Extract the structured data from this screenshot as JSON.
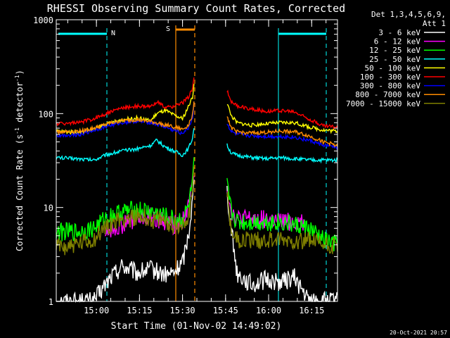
{
  "chart_data": {
    "type": "line",
    "title": "RHESSI Observing Summary Count Rates, Corrected",
    "xlabel": "Start Time (01-Nov-02 14:49:02)",
    "ylabel": "Corrected Count Rate (s",
    "ylabel_sup1": "-1",
    "ylabel_mid": " detector",
    "ylabel_sup2": "-1",
    "ylabel_end": ")",
    "y_scale": "log",
    "ylim": [
      1,
      1000
    ],
    "xlim_minutes": [
      -3,
      95
    ],
    "y_ticks": [
      {
        "value": 1,
        "label": "1"
      },
      {
        "value": 10,
        "label": "10"
      },
      {
        "value": 100,
        "label": "100"
      },
      {
        "value": 1000,
        "label": "1000"
      }
    ],
    "x_ticks": [
      {
        "minute": 11,
        "label": "15:00"
      },
      {
        "minute": 26,
        "label": "15:15"
      },
      {
        "minute": 41,
        "label": "15:30"
      },
      {
        "minute": 56,
        "label": "15:45"
      },
      {
        "minute": 71,
        "label": "16:00"
      },
      {
        "minute": 86,
        "label": "16:15"
      }
    ],
    "legend": {
      "header_line1": "Det 1,3,4,5,6,9,",
      "header_line2": "Att 1",
      "entries": [
        {
          "label": "3 - 6 keV",
          "color": "#ffffff"
        },
        {
          "label": "6 - 12 keV",
          "color": "#ff00ff"
        },
        {
          "label": "12 - 25 keV",
          "color": "#00ff00"
        },
        {
          "label": "25 - 50 keV",
          "color": "#00ffff"
        },
        {
          "label": "50 - 100 keV",
          "color": "#ffff00"
        },
        {
          "label": "100 - 300 keV",
          "color": "#ff0000"
        },
        {
          "label": "300 - 800 keV",
          "color": "#0000ff"
        },
        {
          "label": "800 - 7000 keV",
          "color": "#ff8c00"
        },
        {
          "label": "7000 - 15000 keV",
          "color": "#808000"
        }
      ]
    },
    "series": [
      {
        "name": "3 - 6 keV",
        "color": "#ffffff",
        "x": [
          -3,
          10,
          16,
          20,
          25,
          30,
          35,
          38,
          41,
          43,
          44.5,
          45,
          56.5,
          58,
          60,
          65,
          70,
          75,
          80,
          85,
          91,
          95
        ],
        "y": [
          1,
          1,
          1.8,
          2.4,
          2.0,
          2.2,
          1.9,
          2.0,
          2.6,
          5.0,
          12.0,
          20.0,
          15.0,
          6.0,
          2.0,
          1.5,
          1.7,
          1.6,
          1.8,
          1.0,
          1.0,
          1.0
        ]
      },
      {
        "name": "6 - 12 keV",
        "color": "#ff00ff",
        "x": [
          14,
          20,
          25,
          30,
          35,
          38,
          41,
          43,
          44.5,
          45,
          56.5,
          58,
          60,
          65,
          70,
          75,
          80,
          83.5
        ],
        "y": [
          5.5,
          6.5,
          7.5,
          8.0,
          7.0,
          6.5,
          7.5,
          10,
          18,
          27,
          17,
          9.0,
          7.5,
          7.5,
          7.5,
          7.0,
          7.0,
          7.0
        ]
      },
      {
        "name": "12 - 25 keV",
        "color": "#00ff00",
        "x": [
          -3,
          5,
          10,
          15,
          20,
          25,
          30,
          35,
          38,
          41,
          43,
          44.5,
          45,
          56.5,
          58,
          60,
          65,
          70,
          75,
          80,
          85,
          90,
          95
        ],
        "y": [
          5.5,
          5.5,
          6.0,
          8.0,
          9.0,
          9.5,
          9.0,
          8.0,
          7.5,
          7.5,
          10,
          18,
          28,
          17,
          9.0,
          7.0,
          7.0,
          7.0,
          7.0,
          6.5,
          6.0,
          4.5,
          4.0
        ]
      },
      {
        "name": "25 - 50 keV",
        "color": "#00ffff",
        "x": [
          -3,
          5,
          10,
          15,
          20,
          25,
          30,
          32,
          35,
          38,
          41,
          43,
          44.5,
          45,
          56.5,
          58,
          60,
          65,
          70,
          75,
          80,
          85,
          90,
          95
        ],
        "y": [
          34,
          33,
          32,
          37,
          40,
          42,
          46,
          52,
          44,
          40,
          36,
          42,
          55,
          72,
          46,
          38,
          36,
          34,
          33,
          34,
          33,
          32,
          32,
          32
        ]
      },
      {
        "name": "50 - 100 keV",
        "color": "#ffff00",
        "x": [
          -3,
          5,
          10,
          15,
          20,
          25,
          30,
          32,
          35,
          38,
          41,
          43,
          44.5,
          45,
          56.5,
          58,
          60,
          65,
          70,
          75,
          80,
          85,
          90,
          95
        ],
        "y": [
          65,
          63,
          68,
          78,
          86,
          90,
          84,
          100,
          108,
          96,
          88,
          118,
          150,
          210,
          130,
          95,
          80,
          75,
          78,
          80,
          80,
          72,
          67,
          65
        ]
      },
      {
        "name": "100 - 300 keV",
        "color": "#ff0000",
        "x": [
          -3,
          5,
          10,
          15,
          20,
          25,
          30,
          32,
          35,
          38,
          41,
          43,
          44.5,
          45,
          56.5,
          58,
          60,
          65,
          70,
          75,
          80,
          85,
          90,
          95
        ],
        "y": [
          78,
          80,
          88,
          102,
          115,
          120,
          118,
          135,
          115,
          120,
          130,
          150,
          185,
          240,
          175,
          135,
          120,
          112,
          106,
          108,
          104,
          88,
          74,
          72
        ]
      },
      {
        "name": "300 - 800 keV",
        "color": "#0000ff",
        "x": [
          -3,
          5,
          10,
          15,
          20,
          25,
          30,
          35,
          38,
          41,
          43,
          44.5,
          45,
          56.5,
          58,
          60,
          65,
          70,
          75,
          80,
          85,
          90,
          95
        ],
        "y": [
          58,
          60,
          66,
          74,
          80,
          83,
          80,
          72,
          66,
          62,
          70,
          90,
          130,
          80,
          64,
          60,
          58,
          57,
          57,
          56,
          52,
          46,
          44
        ]
      },
      {
        "name": "800 - 7000 keV",
        "color": "#ff8c00",
        "x": [
          -3,
          5,
          10,
          15,
          20,
          25,
          30,
          35,
          38,
          41,
          43,
          44.5,
          45,
          56.5,
          58,
          60,
          65,
          70,
          75,
          80,
          85,
          90,
          95
        ],
        "y": [
          64,
          65,
          70,
          78,
          84,
          86,
          82,
          76,
          72,
          68,
          75,
          98,
          140,
          95,
          70,
          64,
          62,
          63,
          65,
          64,
          58,
          50,
          46
        ]
      },
      {
        "name": "7000 - 15000 keV",
        "color": "#808000",
        "x": [
          -3,
          5,
          10,
          15,
          20,
          25,
          30,
          35,
          38,
          41,
          43,
          44.5,
          45,
          56.5,
          58,
          60,
          65,
          70,
          75,
          80,
          85,
          90,
          95
        ],
        "y": [
          3.8,
          4.0,
          4.5,
          6.5,
          7.5,
          8.0,
          7.5,
          7.0,
          6.5,
          6.5,
          8.0,
          14,
          30,
          14,
          6.0,
          4.5,
          4.5,
          4.5,
          4.5,
          4.5,
          4.5,
          4.0,
          3.8
        ]
      }
    ],
    "annotations": [
      {
        "label": "N",
        "color": "#00ffff"
      },
      {
        "label": "S",
        "color": "#ff8c00"
      }
    ],
    "footer_timestamp": "20-Oct-2021 20:57"
  }
}
